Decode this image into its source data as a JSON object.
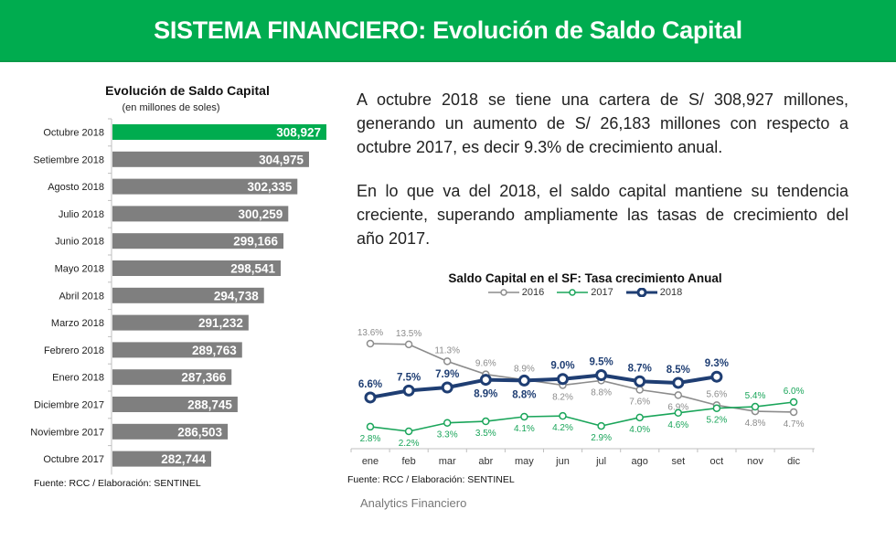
{
  "header": {
    "title": "SISTEMA FINANCIERO: Evolución de Saldo Capital"
  },
  "colors": {
    "brand_green": "#00ac4f",
    "bar_gray": "#7f7f7f",
    "bar_highlight": "#00ac4f",
    "s2016": "#8c8c8c",
    "s2017": "#1aa55a",
    "s2018": "#1f3e73"
  },
  "text": {
    "paragraph1": "A octubre 2018 se tiene una cartera de S/ 308,927 millones, generando un aumento de S/  26,183 millones con respecto a octubre 2017, es decir 9.3% de crecimiento anual.",
    "paragraph2": "En lo que va del 2018, el saldo capital mantiene su tendencia creciente, superando ampliamente las tasas de crecimiento del año 2017."
  },
  "footer": {
    "label": "Analytics Financiero"
  },
  "chart_data": [
    {
      "type": "bar",
      "orientation": "horizontal",
      "title": "Evolución de Saldo Capital",
      "subtitle": "(en millones de soles)",
      "source": "Fuente: RCC / Elaboración: SENTINEL",
      "categories": [
        "Octubre 2018",
        "Setiembre 2018",
        "Agosto 2018",
        "Julio 2018",
        "Junio 2018",
        "Mayo 2018",
        "Abril 2018",
        "Marzo 2018",
        "Febrero 2018",
        "Enero 2018",
        "Diciembre 2017",
        "Noviembre 2017",
        "Octubre 2017"
      ],
      "values": [
        308927,
        304975,
        302335,
        300259,
        299166,
        298541,
        294738,
        291232,
        289763,
        287366,
        288745,
        286503,
        282744
      ],
      "value_labels": [
        "308,927",
        "304,975",
        "302,335",
        "300,259",
        "299,166",
        "298,541",
        "294,738",
        "291,232",
        "289,763",
        "287,366",
        "288,745",
        "286,503",
        "282,744"
      ],
      "highlight_index": 0,
      "xlim": [
        260300,
        310000
      ],
      "grid": false
    },
    {
      "type": "line",
      "title": "Saldo Capital en el SF: Tasa crecimiento Anual",
      "source": "Fuente: RCC / Elaboración: SENTINEL",
      "legend_position": "top",
      "x": [
        "ene",
        "feb",
        "mar",
        "abr",
        "may",
        "jun",
        "jul",
        "ago",
        "set",
        "oct",
        "nov",
        "dic"
      ],
      "ylim": [
        2.0,
        14.0
      ],
      "grid": false,
      "series": [
        {
          "name": "2016",
          "key": "s2016",
          "values": [
            13.6,
            13.5,
            11.3,
            9.6,
            8.9,
            8.2,
            8.8,
            7.6,
            6.9,
            5.6,
            4.8,
            4.7
          ],
          "labels": [
            "13.6%",
            "13.5%",
            "11.3%",
            "9.6%",
            "8.9%",
            "8.2%",
            "8.8%",
            "7.6%",
            "6.9%",
            "5.6%",
            "4.8%",
            "4.7%"
          ],
          "label_pos": [
            "above",
            "above",
            "above",
            "above",
            "above",
            "below",
            "below",
            "below",
            "below",
            "above",
            "below",
            "below"
          ]
        },
        {
          "name": "2017",
          "key": "s2017",
          "values": [
            2.8,
            2.2,
            3.3,
            3.5,
            4.1,
            4.2,
            2.9,
            4.0,
            4.6,
            5.2,
            5.4,
            6.0
          ],
          "labels": [
            "2.8%",
            "2.2%",
            "3.3%",
            "3.5%",
            "4.1%",
            "4.2%",
            "2.9%",
            "4.0%",
            "4.6%",
            "5.2%",
            "5.4%",
            "6.0%"
          ],
          "label_pos": [
            "below",
            "below",
            "below",
            "below",
            "below",
            "below",
            "below",
            "below",
            "below",
            "below",
            "above",
            "above"
          ]
        },
        {
          "name": "2018",
          "key": "s2018",
          "values": [
            6.6,
            7.5,
            7.9,
            8.9,
            8.8,
            9.0,
            9.5,
            8.7,
            8.5,
            9.3
          ],
          "labels": [
            "6.6%",
            "7.5%",
            "7.9%",
            "8.9%",
            "8.8%",
            "9.0%",
            "9.5%",
            "8.7%",
            "8.5%",
            "9.3%"
          ],
          "label_pos": [
            "above",
            "above",
            "above",
            "below",
            "below",
            "above",
            "above",
            "above",
            "above",
            "above"
          ]
        }
      ]
    }
  ]
}
